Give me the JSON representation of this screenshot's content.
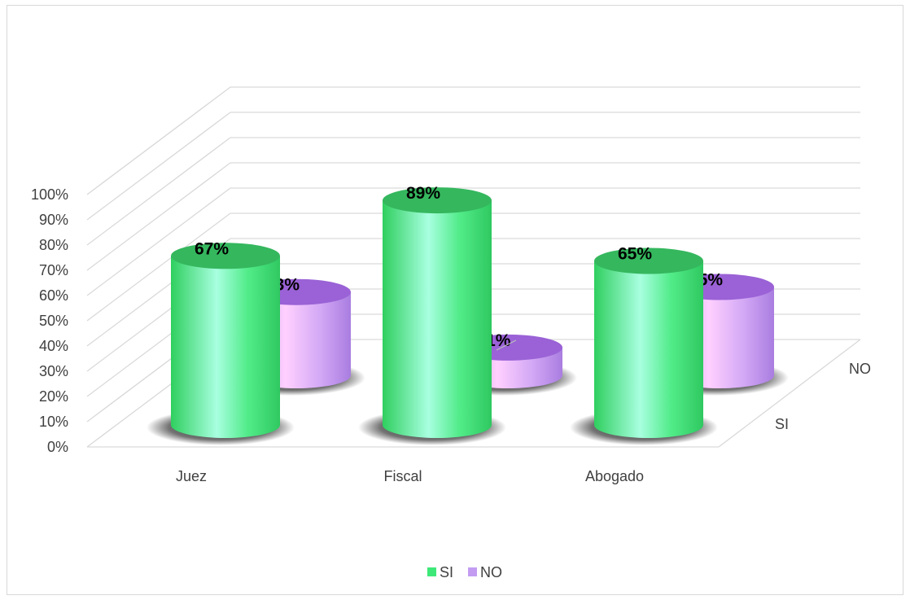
{
  "chart_data": {
    "type": "bar",
    "categories": [
      "Juez",
      "Fiscal",
      "Abogado"
    ],
    "series": [
      {
        "name": "SI",
        "values": [
          67,
          89,
          65
        ],
        "labels": [
          "67%",
          "89%",
          "65%"
        ]
      },
      {
        "name": "NO",
        "values": [
          33,
          11,
          35
        ],
        "labels": [
          "33%",
          "11%",
          "35%"
        ]
      }
    ],
    "yticks": [
      "0%",
      "10%",
      "20%",
      "30%",
      "40%",
      "50%",
      "60%",
      "70%",
      "80%",
      "90%",
      "100%"
    ],
    "ylim": [
      0,
      100
    ],
    "depth_axis": [
      "SI",
      "NO"
    ],
    "grid": true,
    "legend_position": "bottom",
    "colors": {
      "SI": "#3ee878",
      "SI_light": "#a8ffe0",
      "SI_top": "#35b75e",
      "NO": "#c39cf2",
      "NO_light": "#ffd0ff",
      "NO_top": "#9a62d6"
    }
  }
}
